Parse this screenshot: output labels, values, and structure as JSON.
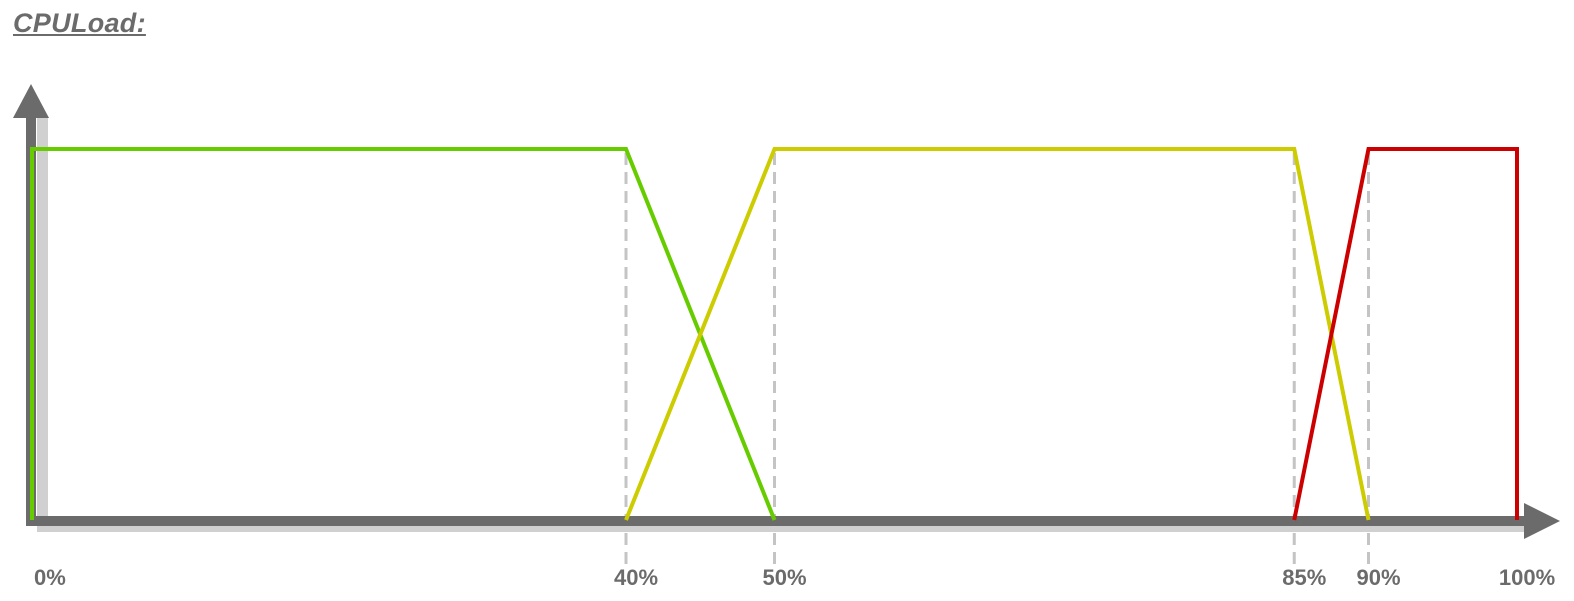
{
  "chart_data": {
    "type": "line",
    "title": "CPULoad:",
    "xlabel": "",
    "ylabel": "",
    "xlim": [
      0,
      100
    ],
    "ylim": [
      0,
      1
    ],
    "grid": false,
    "x_ticks": [
      {
        "value": 0,
        "label": "0%",
        "dashed_guide": false
      },
      {
        "value": 40,
        "label": "40%",
        "dashed_guide": true
      },
      {
        "value": 50,
        "label": "50%",
        "dashed_guide": true
      },
      {
        "value": 85,
        "label": "85%",
        "dashed_guide": true
      },
      {
        "value": 90,
        "label": "90%",
        "dashed_guide": true
      },
      {
        "value": 100,
        "label": "100%",
        "dashed_guide": false
      }
    ],
    "series": [
      {
        "color": "#66cc00",
        "points": [
          [
            0,
            0
          ],
          [
            0,
            1
          ],
          [
            40,
            1
          ],
          [
            50,
            0
          ]
        ]
      },
      {
        "color": "#cccc00",
        "points": [
          [
            40,
            0
          ],
          [
            50,
            1
          ],
          [
            85,
            1
          ],
          [
            90,
            0
          ]
        ]
      },
      {
        "color": "#cc0000",
        "points": [
          [
            85,
            0
          ],
          [
            90,
            1
          ],
          [
            100,
            1
          ],
          [
            100,
            0
          ]
        ]
      }
    ]
  },
  "colors": {
    "axis": "#6b6b6b",
    "guide": "#c4c4c4",
    "text": "#6b6b6b"
  }
}
